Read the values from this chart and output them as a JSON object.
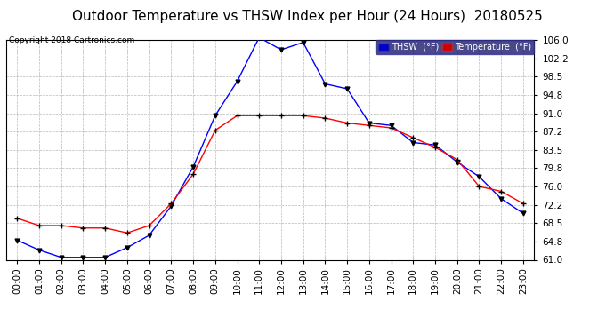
{
  "title": "Outdoor Temperature vs THSW Index per Hour (24 Hours)  20180525",
  "copyright": "Copyright 2018 Cartronics.com",
  "hours": [
    "00:00",
    "01:00",
    "02:00",
    "03:00",
    "04:00",
    "05:00",
    "06:00",
    "07:00",
    "08:00",
    "09:00",
    "10:00",
    "11:00",
    "12:00",
    "13:00",
    "14:00",
    "15:00",
    "16:00",
    "17:00",
    "18:00",
    "19:00",
    "20:00",
    "21:00",
    "22:00",
    "23:00"
  ],
  "thsw": [
    65.0,
    63.0,
    61.5,
    61.5,
    61.5,
    63.5,
    66.0,
    72.0,
    80.0,
    90.5,
    97.5,
    106.5,
    104.0,
    105.5,
    97.0,
    96.0,
    89.0,
    88.5,
    85.0,
    84.5,
    81.0,
    78.0,
    73.5,
    70.5
  ],
  "temperature": [
    69.5,
    68.0,
    68.0,
    67.5,
    67.5,
    66.5,
    68.0,
    72.5,
    78.5,
    87.5,
    90.5,
    90.5,
    90.5,
    90.5,
    90.0,
    89.0,
    88.5,
    88.0,
    86.0,
    84.0,
    81.5,
    76.0,
    75.0,
    72.5
  ],
  "thsw_color": "#0000ff",
  "temperature_color": "#ff0000",
  "marker_color": "#000000",
  "background_color": "#ffffff",
  "plot_bg_color": "#ffffff",
  "grid_color": "#b0b0b0",
  "ylim_min": 61.0,
  "ylim_max": 106.0,
  "yticks": [
    61.0,
    64.8,
    68.5,
    72.2,
    76.0,
    79.8,
    83.5,
    87.2,
    91.0,
    94.8,
    98.5,
    102.2,
    106.0
  ],
  "title_fontsize": 11,
  "copyright_fontsize": 6.5,
  "legend_thsw_label": "THSW  (°F)",
  "legend_temp_label": "Temperature  (°F)",
  "legend_thsw_bg": "#0000cc",
  "legend_temp_bg": "#cc0000",
  "legend_bg": "#1a1a6e",
  "tick_fontsize": 7.5
}
